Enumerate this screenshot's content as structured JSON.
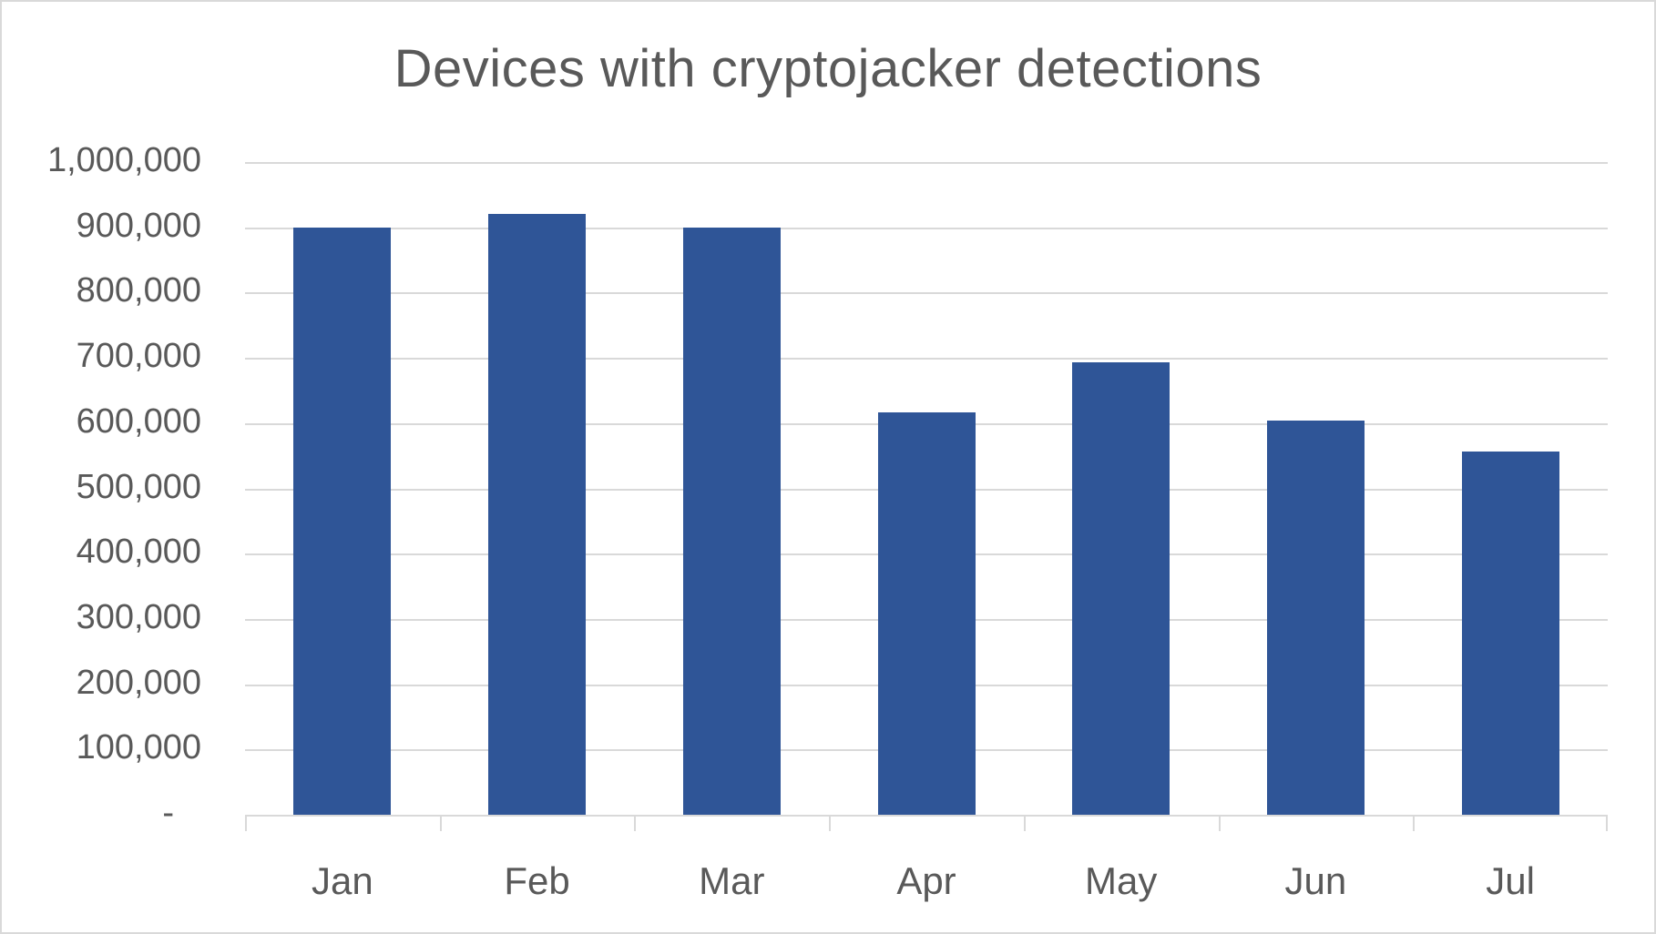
{
  "chart": {
    "title": "Devices with cryptojacker detections",
    "bar_color": "#2f5597",
    "gridline_color": "#d9d9d9",
    "text_color": "#595959",
    "y_ticks": [
      {
        "value": 0,
        "label": "-"
      },
      {
        "value": 100000,
        "label": "100,000"
      },
      {
        "value": 200000,
        "label": "200,000"
      },
      {
        "value": 300000,
        "label": "300,000"
      },
      {
        "value": 400000,
        "label": "400,000"
      },
      {
        "value": 500000,
        "label": "500,000"
      },
      {
        "value": 600000,
        "label": "600,000"
      },
      {
        "value": 700000,
        "label": "700,000"
      },
      {
        "value": 800000,
        "label": "800,000"
      },
      {
        "value": 900000,
        "label": "900,000"
      },
      {
        "value": 1000000,
        "label": "1,000,000"
      }
    ]
  },
  "chart_data": {
    "type": "bar",
    "title": "Devices with cryptojacker detections",
    "xlabel": "",
    "ylabel": "",
    "categories": [
      "Jan",
      "Feb",
      "Mar",
      "Apr",
      "May",
      "Jun",
      "Jul"
    ],
    "values": [
      899000,
      921000,
      900000,
      616000,
      693000,
      604000,
      557000
    ],
    "ylim": [
      0,
      1000000
    ],
    "yticks": [
      0,
      100000,
      200000,
      300000,
      400000,
      500000,
      600000,
      700000,
      800000,
      900000,
      1000000
    ],
    "ytick_labels": [
      "-",
      "100,000",
      "200,000",
      "300,000",
      "400,000",
      "500,000",
      "600,000",
      "700,000",
      "800,000",
      "900,000",
      "1,000,000"
    ],
    "grid": true,
    "legend": null
  }
}
